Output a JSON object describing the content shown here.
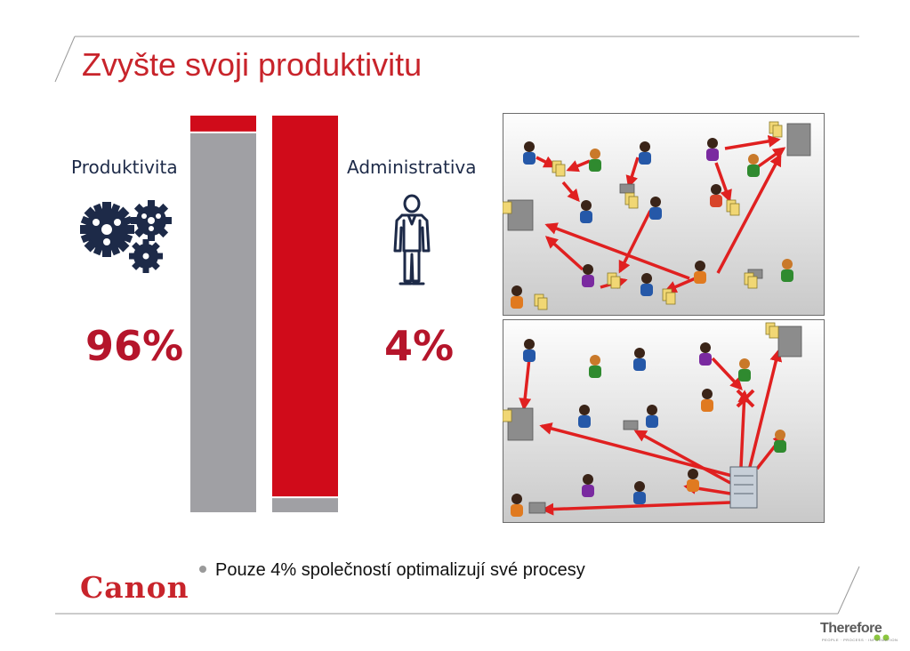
{
  "slide": {
    "title": "Zvyšte svoji produktivitu",
    "bullet": "Pouze 4% společností optimalizují své procesy"
  },
  "productivity": {
    "label": "Produktivita",
    "value_label": "96%",
    "icon": "gears-icon"
  },
  "administration": {
    "label": "Administrativa",
    "value_label": "4%",
    "icon": "person-icon"
  },
  "chart_data": {
    "type": "bar",
    "stacked": true,
    "categories": [
      "Produktivita",
      "Administrativa"
    ],
    "series": [
      {
        "name": "Produktivita",
        "values": [
          96,
          4
        ],
        "color": "#a0a0a4"
      },
      {
        "name": "Administrativa",
        "values": [
          4,
          96
        ],
        "color": "#d00b1a"
      }
    ],
    "ylim": [
      0,
      100
    ]
  },
  "diagrams": {
    "top_icon": "chaotic-workflow-diagram",
    "bottom_icon": "centralized-workflow-diagram"
  },
  "logos": {
    "canon": "Canon",
    "therefore": "Therefore",
    "therefore_tagline": "PEOPLE · PROCESS · INFORMATION"
  },
  "colors": {
    "title_red": "#c8242b",
    "label_navy": "#1d2a48",
    "percent_red": "#b5152b",
    "bar_gray": "#a0a0a4",
    "bar_red": "#d00b1a",
    "arrow_red": "#e02020",
    "therefore_green": "#8cc63f"
  }
}
